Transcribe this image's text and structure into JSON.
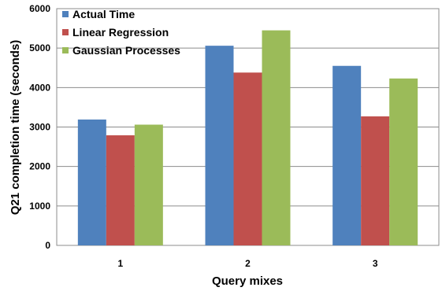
{
  "chart_data": {
    "type": "bar",
    "categories": [
      "1",
      "2",
      "3"
    ],
    "series": [
      {
        "name": "Actual Time",
        "values": [
          3190,
          5060,
          4550
        ],
        "color": "#4f81bd"
      },
      {
        "name": "Linear Regression",
        "values": [
          2790,
          4380,
          3270
        ],
        "color": "#c0504d"
      },
      {
        "name": "Gaussian Processes",
        "values": [
          3060,
          5450,
          4230
        ],
        "color": "#9bbb59"
      }
    ],
    "title": "",
    "xlabel": "Query mixes",
    "ylabel": "Q21 completion time (seconds)",
    "ylim": [
      0,
      6000
    ],
    "yticks": [
      0,
      1000,
      2000,
      3000,
      4000,
      5000,
      6000
    ],
    "grid": true,
    "legend_position": "top-left"
  }
}
